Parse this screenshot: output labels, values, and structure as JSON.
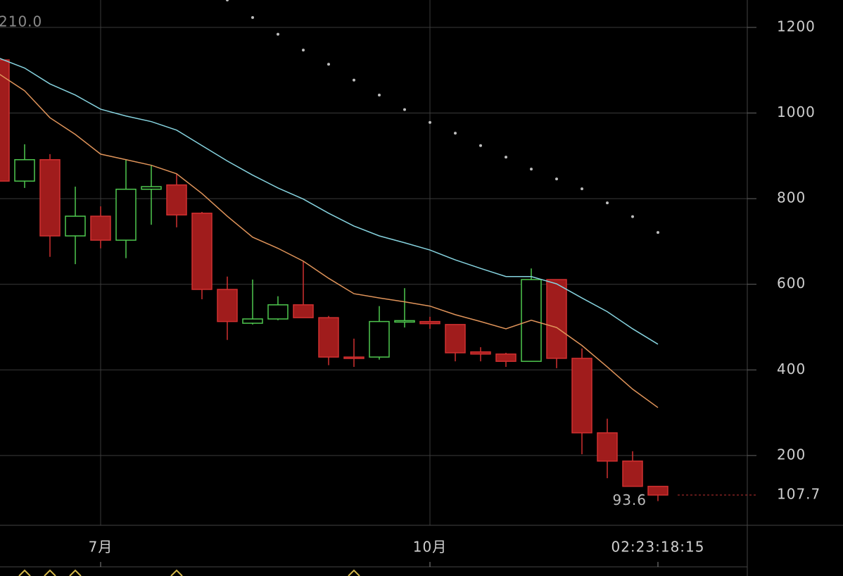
{
  "chart_data": {
    "type": "candlestick",
    "top_left_label": "210.0",
    "categories": [
      null,
      null,
      null,
      null,
      "7月",
      null,
      null,
      null,
      null,
      null,
      null,
      null,
      null,
      null,
      null,
      null,
      null,
      "10月",
      null,
      null,
      null,
      null,
      null,
      null,
      null,
      null,
      "02:23:18:15"
    ],
    "open": [
      1124,
      841,
      891,
      713,
      759,
      703,
      822,
      832,
      766,
      588,
      509,
      519,
      552,
      522,
      430,
      430,
      512,
      513,
      506,
      442,
      437,
      420,
      611,
      427,
      253,
      187,
      128
    ],
    "high": [
      1130,
      927,
      904,
      828,
      782,
      891,
      878,
      858,
      769,
      618,
      611,
      572,
      654,
      526,
      473,
      549,
      591,
      524,
      506,
      453,
      440,
      637,
      611,
      450,
      286,
      210,
      128
    ],
    "low": [
      841,
      825,
      664,
      647,
      684,
      661,
      739,
      733,
      565,
      470,
      506,
      516,
      522,
      411,
      407,
      424,
      499,
      496,
      420,
      420,
      407,
      420,
      404,
      203,
      147,
      128,
      93.6
    ],
    "close": [
      841,
      891,
      713,
      759,
      703,
      822,
      828,
      762,
      588,
      513,
      519,
      552,
      522,
      430,
      427,
      513,
      515,
      508,
      440,
      437,
      420,
      611,
      427,
      253,
      187,
      128,
      107.7
    ],
    "up_color": "#4fc84f",
    "down_color": "#a01c1c",
    "lines": [
      {
        "color": "#86d3df",
        "values": [
          1128,
          1105,
          1068,
          1042,
          1009,
          993,
          980,
          960,
          924,
          888,
          855,
          825,
          799,
          766,
          736,
          713,
          697,
          680,
          657,
          637,
          618,
          618,
          601,
          568,
          536,
          496,
          460
        ]
      },
      {
        "color": "#e0945a",
        "values": [
          1091,
          1052,
          989,
          950,
          904,
          891,
          878,
          858,
          812,
          759,
          710,
          684,
          654,
          614,
          578,
          568,
          559,
          549,
          529,
          513,
          496,
          516,
          499,
          457,
          407,
          355,
          312
        ]
      }
    ],
    "dots": {
      "color": "#bdbdbd",
      "values": [
        null,
        null,
        null,
        null,
        null,
        null,
        null,
        null,
        null,
        1264,
        1223,
        1184,
        1147,
        1114,
        1077,
        1042,
        1008,
        978,
        953,
        924,
        897,
        869,
        846,
        823,
        790,
        758,
        721
      ]
    },
    "ylim": [
      37,
      1264
    ],
    "yticks": [
      200,
      400,
      600,
      800,
      1000,
      1200
    ],
    "grid": true
  }
}
